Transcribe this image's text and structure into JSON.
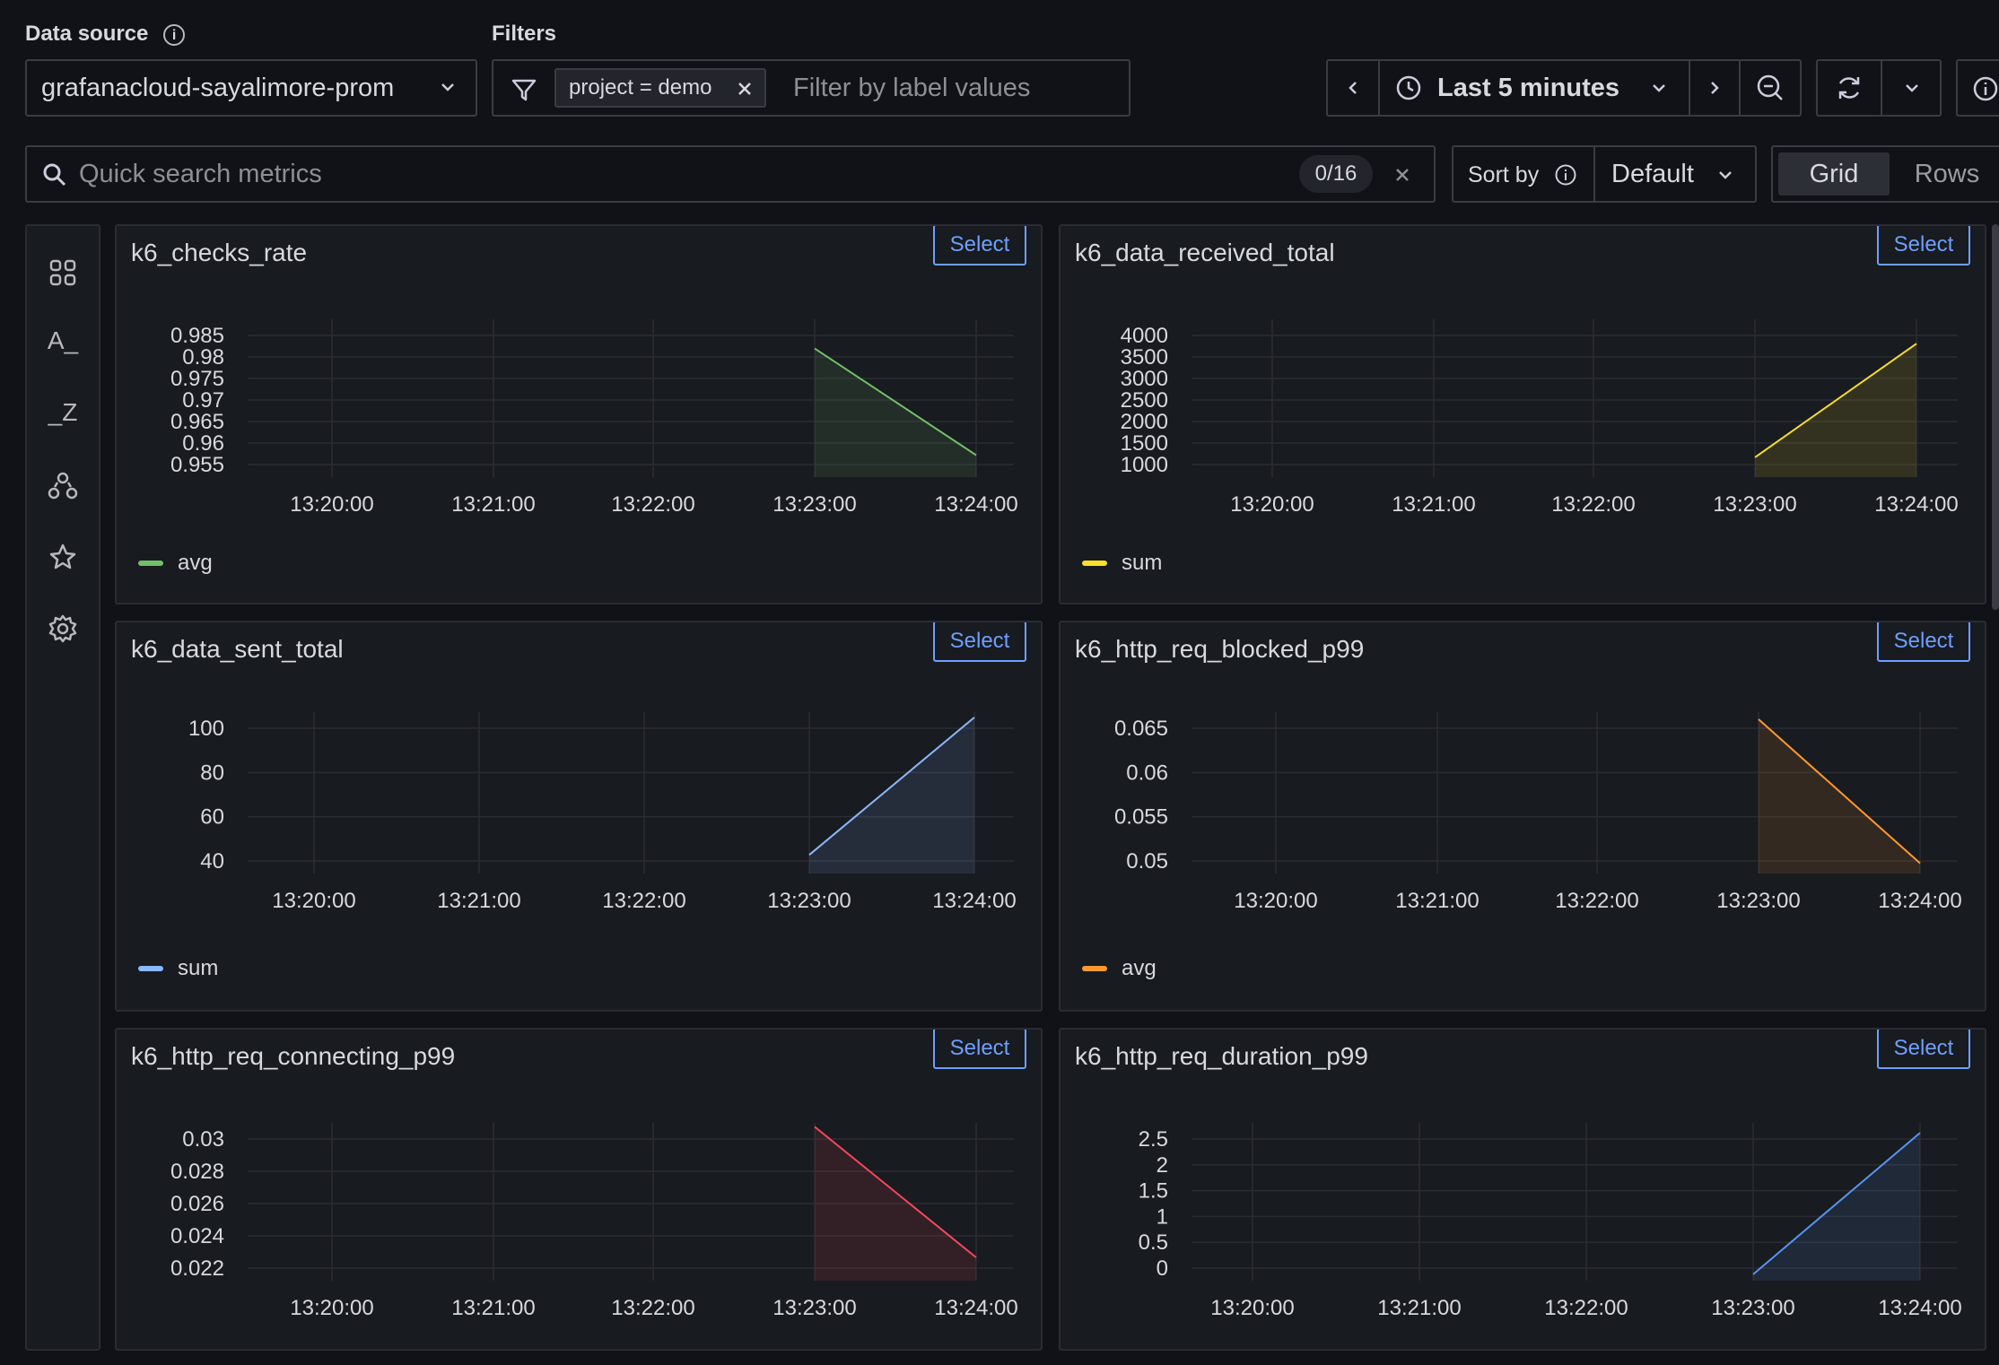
{
  "header": {
    "data_source_label": "Data source",
    "data_source_value": "grafanacloud-sayalimore-prom",
    "filters_label": "Filters",
    "filter_chip": "project = demo",
    "filter_placeholder": "Filter by label values",
    "time_range": "Last 5 minutes"
  },
  "toolbar": {
    "search_placeholder": "Quick search metrics",
    "search_count": "0/16",
    "sort_label": "Sort by",
    "sort_value": "Default",
    "view_grid": "Grid",
    "view_rows": "Rows"
  },
  "sidebar": {
    "icons": [
      "grid-icon",
      "a-prefix-icon",
      "z-suffix-icon",
      "groups-icon",
      "star-icon",
      "gear-icon"
    ],
    "a_text": "A_",
    "z_text": "_Z"
  },
  "select_label": "Select",
  "panels": [
    {
      "title": "k6_checks_rate",
      "series": "avg",
      "color": "#73bf69",
      "x_ticks": [
        "13:20:00",
        "13:21:00",
        "13:22:00",
        "13:23:00",
        "13:24:00"
      ],
      "y_ticks": [
        "0.985",
        "0.98",
        "0.975",
        "0.97",
        "0.965",
        "0.96",
        "0.955"
      ]
    },
    {
      "title": "k6_data_received_total",
      "series": "sum",
      "color": "#fade2a",
      "x_ticks": [
        "13:20:00",
        "13:21:00",
        "13:22:00",
        "13:23:00",
        "13:24:00"
      ],
      "y_ticks": [
        "4000",
        "3500",
        "3000",
        "2500",
        "2000",
        "1500",
        "1000"
      ]
    },
    {
      "title": "k6_data_sent_total",
      "series": "sum",
      "color": "#8ab8ff",
      "x_ticks": [
        "13:20:00",
        "13:21:00",
        "13:22:00",
        "13:23:00",
        "13:24:00"
      ],
      "y_ticks": [
        "100",
        "80",
        "60",
        "40"
      ]
    },
    {
      "title": "k6_http_req_blocked_p99",
      "series": "avg",
      "color": "#ff9830",
      "x_ticks": [
        "13:20:00",
        "13:21:00",
        "13:22:00",
        "13:23:00",
        "13:24:00"
      ],
      "y_ticks": [
        "0.065",
        "0.06",
        "0.055",
        "0.05"
      ]
    },
    {
      "title": "k6_http_req_connecting_p99",
      "series": "",
      "color": "#f2495c",
      "x_ticks": [
        "13:20:00",
        "13:21:00",
        "13:22:00",
        "13:23:00",
        "13:24:00"
      ],
      "y_ticks": [
        "0.03",
        "0.028",
        "0.026",
        "0.024",
        "0.022"
      ]
    },
    {
      "title": "k6_http_req_duration_p99",
      "series": "",
      "color": "#5794f2",
      "x_ticks": [
        "13:20:00",
        "13:21:00",
        "13:22:00",
        "13:23:00",
        "13:24:00"
      ],
      "y_ticks": [
        "2.5",
        "2",
        "1.5",
        "1",
        "0.5",
        "0"
      ]
    }
  ],
  "chart_data": [
    {
      "type": "area",
      "title": "k6_checks_rate",
      "x": [
        "13:23:00",
        "13:24:00"
      ],
      "series": [
        {
          "name": "avg",
          "values": [
            0.984,
            0.955
          ]
        }
      ],
      "ylim": [
        0.95,
        0.99
      ]
    },
    {
      "type": "area",
      "title": "k6_data_received_total",
      "x": [
        "13:23:00",
        "13:24:00"
      ],
      "series": [
        {
          "name": "sum",
          "values": [
            1330,
            3650
          ]
        }
      ],
      "ylim": [
        1000,
        4000
      ]
    },
    {
      "type": "area",
      "title": "k6_data_sent_total",
      "x": [
        "13:23:00",
        "13:24:00"
      ],
      "series": [
        {
          "name": "sum",
          "values": [
            38,
            111
          ]
        }
      ],
      "ylim": [
        30,
        110
      ]
    },
    {
      "type": "area",
      "title": "k6_http_req_blocked_p99",
      "x": [
        "13:23:00",
        "13:24:00"
      ],
      "series": [
        {
          "name": "avg",
          "values": [
            0.066,
            0.0488
          ]
        }
      ],
      "ylim": [
        0.048,
        0.066
      ]
    },
    {
      "type": "area",
      "title": "k6_http_req_connecting_p99",
      "x": [
        "13:23:00",
        "13:24:00"
      ],
      "series": [
        {
          "values": [
            0.0302,
            0.0222
          ]
        }
      ],
      "ylim": [
        0.021,
        0.03
      ]
    },
    {
      "type": "area",
      "title": "k6_http_req_duration_p99",
      "x": [
        "13:23:00",
        "13:24:00"
      ],
      "series": [
        {
          "values": [
            0.05,
            2.55
          ]
        }
      ],
      "ylim": [
        0,
        2.6
      ]
    }
  ]
}
